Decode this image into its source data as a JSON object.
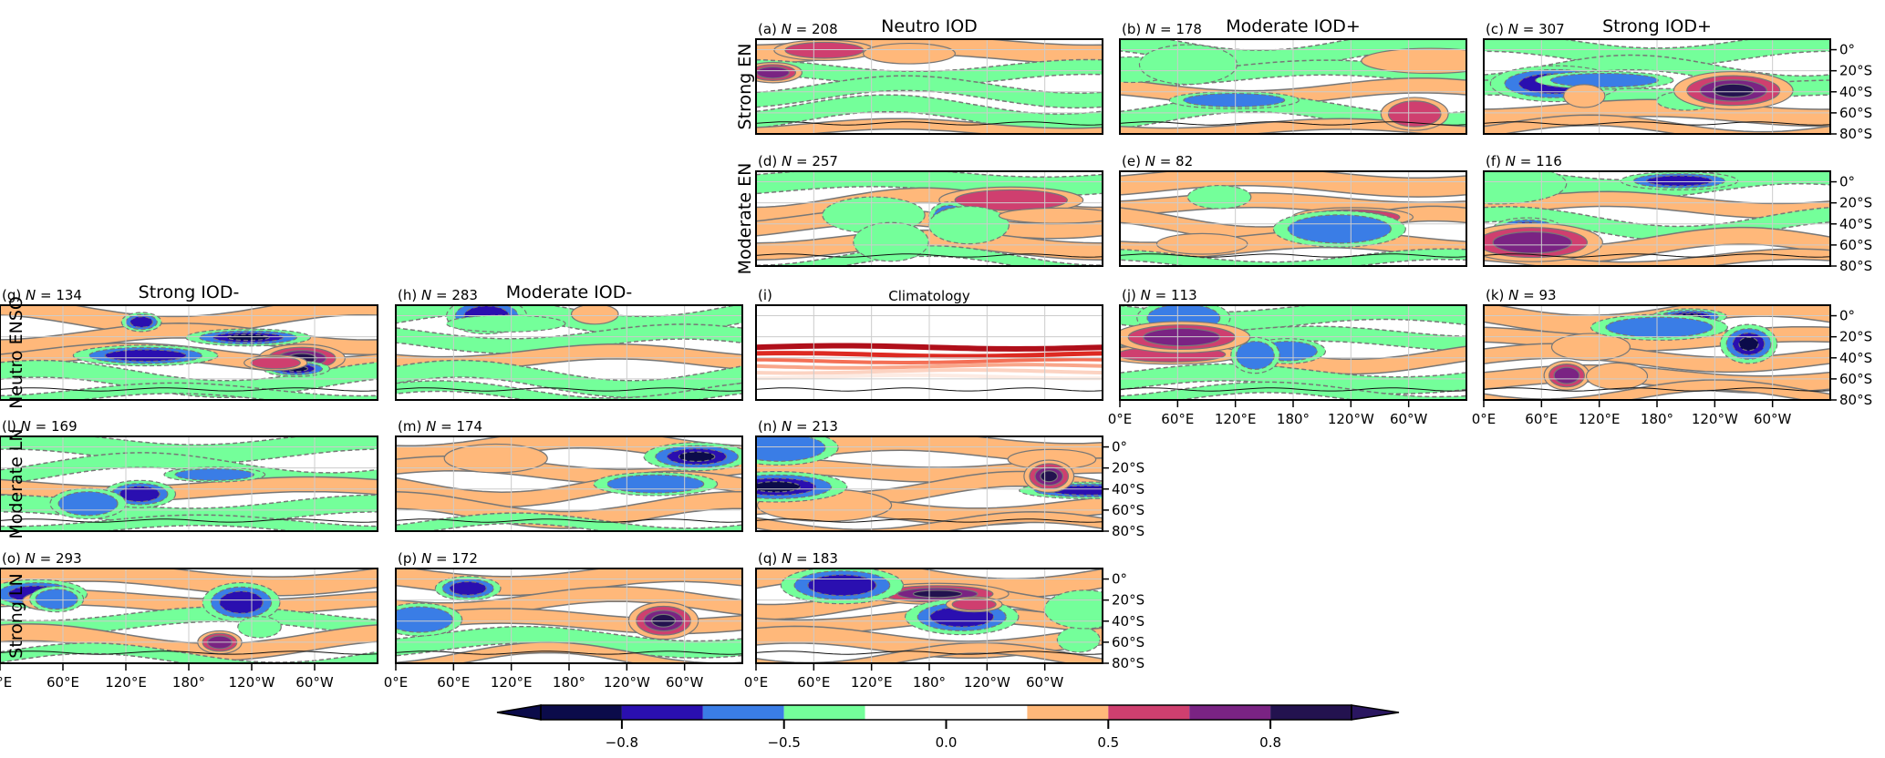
{
  "chart_data": {
    "type": "heatmap",
    "description": "Composite correlation maps (0°E–360°, 0°–80°S) by ENSO phase (rows) and IOD phase (columns)",
    "columns": [
      "Strong IOD-",
      "Moderate IOD-",
      "Neutro IOD",
      "Moderate IOD+",
      "Strong IOD+"
    ],
    "rows": [
      "Strong EN",
      "Moderate EN",
      "Neutro ENSO",
      "Moderate LN",
      "Strong LN"
    ],
    "panels": [
      {
        "id": "a",
        "label": "(a)",
        "n": 208,
        "row": "Strong EN",
        "col": "Neutro IOD",
        "title": "Neutro IOD"
      },
      {
        "id": "b",
        "label": "(b)",
        "n": 178,
        "row": "Strong EN",
        "col": "Moderate IOD+",
        "title": "Moderate IOD+"
      },
      {
        "id": "c",
        "label": "(c)",
        "n": 307,
        "row": "Strong EN",
        "col": "Strong IOD+",
        "title": "Strong IOD+"
      },
      {
        "id": "d",
        "label": "(d)",
        "n": 257,
        "row": "Moderate EN",
        "col": "Neutro IOD"
      },
      {
        "id": "e",
        "label": "(e)",
        "n": 82,
        "row": "Moderate EN",
        "col": "Moderate IOD+"
      },
      {
        "id": "f",
        "label": "(f)",
        "n": 116,
        "row": "Moderate EN",
        "col": "Strong IOD+"
      },
      {
        "id": "g",
        "label": "(g)",
        "n": 134,
        "row": "Neutro ENSO",
        "col": "Strong IOD-",
        "title": "Strong IOD-"
      },
      {
        "id": "h",
        "label": "(h)",
        "n": 283,
        "row": "Neutro ENSO",
        "col": "Moderate IOD-",
        "title": "Moderate IOD-"
      },
      {
        "id": "i",
        "label": "(i)",
        "n": null,
        "row": "Neutro ENSO",
        "col": "Neutro IOD",
        "title": "Climatology"
      },
      {
        "id": "j",
        "label": "(j)",
        "n": 113,
        "row": "Neutro ENSO",
        "col": "Moderate IOD+"
      },
      {
        "id": "k",
        "label": "(k)",
        "n": 93,
        "row": "Neutro ENSO",
        "col": "Strong IOD+"
      },
      {
        "id": "l",
        "label": "(l)",
        "n": 169,
        "row": "Moderate LN",
        "col": "Strong IOD-"
      },
      {
        "id": "m",
        "label": "(m)",
        "n": 174,
        "row": "Moderate LN",
        "col": "Moderate IOD-"
      },
      {
        "id": "n",
        "label": "(n)",
        "n": 213,
        "row": "Moderate LN",
        "col": "Neutro IOD"
      },
      {
        "id": "o",
        "label": "(o)",
        "n": 293,
        "row": "Strong LN",
        "col": "Strong IOD-"
      },
      {
        "id": "p",
        "label": "(p)",
        "n": 172,
        "row": "Strong LN",
        "col": "Moderate IOD-"
      },
      {
        "id": "q",
        "label": "(q)",
        "n": 183,
        "row": "Strong LN",
        "col": "Neutro IOD"
      }
    ],
    "xticks": [
      "0°E",
      "60°E",
      "120°E",
      "180°",
      "120°W",
      "60°W"
    ],
    "xtick_values": [
      0,
      60,
      120,
      180,
      240,
      300
    ],
    "xlim": [
      0,
      360
    ],
    "yticks": [
      "0°",
      "20°S",
      "40°S",
      "60°S",
      "80°S"
    ],
    "ytick_values": [
      0,
      -20,
      -40,
      -60,
      -80
    ],
    "ylim": [
      -80,
      10
    ],
    "colorbar": {
      "levels": [
        -0.9,
        -0.8,
        -0.65,
        -0.5,
        -0.25,
        0.25,
        0.5,
        0.65,
        0.8,
        0.9
      ],
      "colors": [
        "#0b0b4a",
        "#2a0fb0",
        "#3a7de6",
        "#74ff9a",
        "#ffffff",
        "#ffb87a",
        "#cf3f6f",
        "#7a2383",
        "#23124f"
      ],
      "under_color": "#0b0b4a",
      "over_color": "#2a1660",
      "ticks": [
        "-0.8",
        "-0.5",
        "0.0",
        "0.5",
        "0.8"
      ],
      "extend": "both",
      "placement": "bottom"
    },
    "climatology_band_colors": [
      "#b00f1a",
      "#dd2a22",
      "#f46f55",
      "#f9a68a",
      "#fcd3c2",
      "#fdebe3"
    ]
  }
}
